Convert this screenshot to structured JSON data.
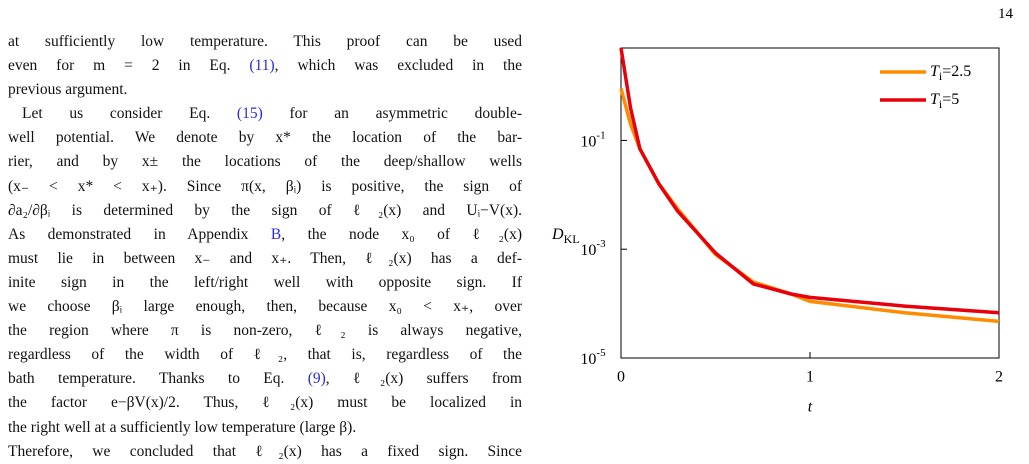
{
  "page_number": "14",
  "text": {
    "lines": [
      "at sufficiently low temperature. This proof can be used",
      "even for m = 2 in Eq. (11), which was excluded in the",
      "previous argument.",
      "Let us consider Eq. (15) for an asymmetric double-",
      "well potential. We denote by x* the location of the bar-",
      "rier, and by x± the locations of the deep/shallow wells",
      "(x₋ < x* < x₊). Since π(x, βᵢ) is positive, the sign of",
      "∂a₂/∂βᵢ is determined by the sign of ℓ₂(x) and Uᵢ−V(x).",
      "As demonstrated in Appendix B, the node x₀ of ℓ₂(x)",
      "must lie in between x₋ and x₊. Then, ℓ₂(x) has a def-",
      "inite sign in the left/right well with opposite sign. If",
      "we choose βᵢ large enough, then, because x₀ < x₊, over",
      "the region where π is non-zero, ℓ₂ is always negative,",
      "regardless of the width of ℓ₂, that is, regardless of the",
      "bath temperature. Thanks to Eq. (9), ℓ₂(x) suffers from",
      "the factor e−βV(x)/2. Thus, ℓ₂(x) must be localized in",
      "the right well at a sufficiently low temperature (large β).",
      "Therefore, we concluded that ℓ₂(x) has a fixed sign. Since"
    ]
  },
  "chart_data": {
    "type": "line",
    "x_label": "t",
    "y_label": "DKL",
    "x": [
      0,
      0.05,
      0.1,
      0.2,
      0.3,
      0.5,
      0.7,
      0.9,
      1,
      1.5,
      2
    ],
    "series": [
      {
        "name": "Ti=2.5",
        "color": "#ff8c00",
        "values": [
          0.9,
          0.2,
          0.07,
          0.016,
          0.0055,
          0.0008,
          0.00025,
          0.00015,
          0.00011,
          6.8e-05,
          4.7e-05
        ]
      },
      {
        "name": "Ti=5",
        "color": "#e8000b",
        "values": [
          5,
          0.4,
          0.07,
          0.016,
          0.005,
          0.00085,
          0.00023,
          0.00015,
          0.00013,
          9e-05,
          6.8e-05
        ]
      }
    ],
    "xlim": [
      0,
      2
    ],
    "xticks": [
      0,
      1,
      2
    ],
    "ylim": [
      1e-05,
      5
    ],
    "yticks": [
      {
        "value": 0.1,
        "label": "10-1"
      },
      {
        "value": 0.001,
        "label": "10-3"
      },
      {
        "value": 1e-05,
        "label": "10-5"
      }
    ],
    "log_y": true,
    "legend": "upper right"
  }
}
